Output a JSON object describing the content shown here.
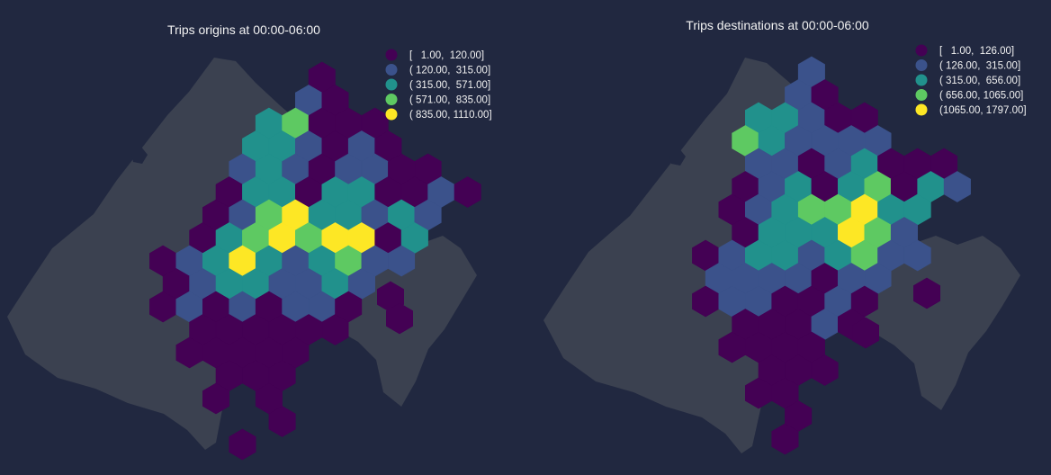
{
  "colors": {
    "background": "#212840",
    "land": "#3b4150",
    "bins": [
      "#440154",
      "#3b528b",
      "#21918c",
      "#5ec962",
      "#fde725"
    ]
  },
  "maps": [
    {
      "id": "origins",
      "title": "Trips origins at  00:00-06:00",
      "legend": [
        {
          "label": "[   1.00,  120.00]",
          "bin": 0
        },
        {
          "label": "( 120.00,  315.00]",
          "bin": 1
        },
        {
          "label": "( 315.00,  571.00]",
          "bin": 2
        },
        {
          "label": "( 571.00,  835.00]",
          "bin": 3
        },
        {
          "label": "( 835.00, 1110.00]",
          "bin": 4
        }
      ]
    },
    {
      "id": "destinations",
      "title": "Trips destinations at 00:00-06:00",
      "legend": [
        {
          "label": "[   1.00,  126.00]",
          "bin": 0
        },
        {
          "label": "( 126.00,  315.00]",
          "bin": 1
        },
        {
          "label": "( 315.00,  656.00]",
          "bin": 2
        },
        {
          "label": "( 656.00, 1065.00]",
          "bin": 3
        },
        {
          "label": "(1065.00, 1797.00]",
          "bin": 4
        }
      ]
    }
  ]
}
